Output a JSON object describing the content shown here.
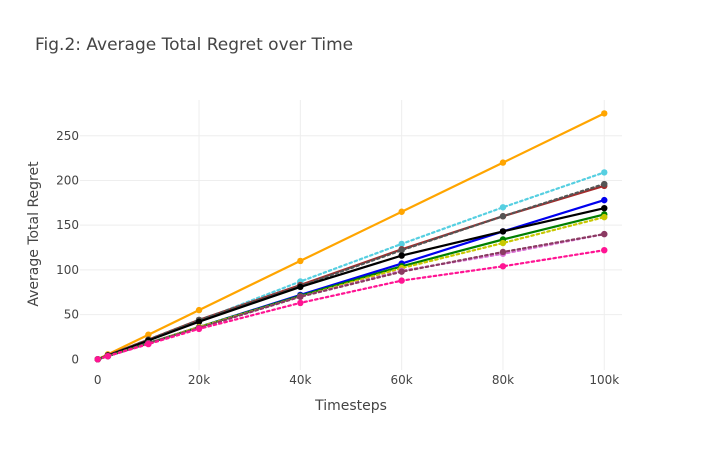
{
  "chart_data": {
    "type": "line",
    "title": "Fig.2: Average Total Regret over Time",
    "xlabel": "Timesteps",
    "ylabel": "Average Total Regret",
    "xlim": [
      -3500,
      103500
    ],
    "ylim": [
      -12,
      290
    ],
    "x_ticks": [
      0,
      20000,
      40000,
      60000,
      80000,
      100000
    ],
    "x_tick_labels": [
      "0",
      "20k",
      "40k",
      "60k",
      "80k",
      "100k"
    ],
    "y_ticks": [
      0,
      50,
      100,
      150,
      200,
      250
    ],
    "y_tick_labels": [
      "0",
      "50",
      "100",
      "150",
      "200",
      "250"
    ],
    "grid": true,
    "legend": "none",
    "x": [
      0,
      2000,
      10000,
      20000,
      40000,
      60000,
      80000,
      100000
    ],
    "series": [
      {
        "color": "#FFA500",
        "dash": "solid",
        "values": [
          0,
          5.5,
          27.5,
          55,
          110,
          165,
          220,
          275
        ]
      },
      {
        "color": "#56CFE1",
        "dash": "dotted",
        "values": [
          0,
          4,
          21,
          43,
          87,
          129,
          170,
          209
        ]
      },
      {
        "color": "#A52A2A",
        "dash": "solid",
        "values": [
          0,
          4.5,
          22,
          44,
          83,
          123,
          160,
          194
        ]
      },
      {
        "color": "#555555",
        "dash": "dotted",
        "values": [
          0,
          4.5,
          22,
          44,
          82,
          122,
          160,
          196
        ]
      },
      {
        "color": "#0000EE",
        "dash": "solid",
        "values": [
          0,
          3.5,
          18,
          36,
          72,
          107,
          143,
          178
        ]
      },
      {
        "color": "#000000",
        "dash": "solid",
        "values": [
          0,
          4,
          21,
          42,
          81,
          116,
          143,
          169
        ]
      },
      {
        "color": "#008000",
        "dash": "solid",
        "values": [
          0,
          3.5,
          18,
          36,
          71,
          104,
          134,
          162
        ]
      },
      {
        "color": "#C8C800",
        "dash": "dotted",
        "values": [
          0,
          3.5,
          18,
          36,
          70,
          102,
          130,
          159
        ]
      },
      {
        "color": "#DA70D6",
        "dash": "dotted",
        "values": [
          0,
          3.5,
          18,
          35,
          70,
          99,
          118,
          140
        ]
      },
      {
        "color": "#8B3A62",
        "dash": "dotted",
        "values": [
          0,
          3.5,
          18,
          35,
          70,
          98,
          120,
          140
        ]
      },
      {
        "color": "#FF1493",
        "dash": "dotted",
        "values": [
          0,
          3.5,
          17,
          34,
          63,
          88,
          104,
          122
        ]
      }
    ]
  }
}
